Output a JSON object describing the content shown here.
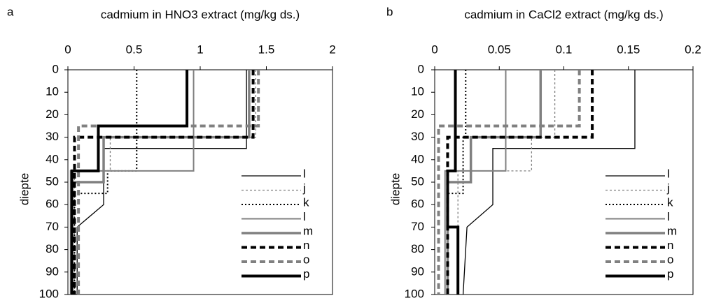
{
  "charts": [
    {
      "type": "line",
      "label": "a",
      "title": "cadmium in HNO3 extract (mg/kg ds.)",
      "y_label": "diepte",
      "xlim": [
        0,
        2
      ],
      "xticks": [
        0,
        0.5,
        1,
        1.5,
        2
      ],
      "ylim": [
        0,
        100
      ],
      "yticks": [
        0,
        10,
        20,
        30,
        40,
        50,
        60,
        70,
        80,
        90,
        100
      ],
      "y_inverted": true,
      "legend": "lower right",
      "series": [
        {
          "name": "l",
          "color": "#000000",
          "x": [
            1.35,
            1.35,
            0.27,
            0.27,
            0.07,
            0.07
          ],
          "y": [
            0,
            35,
            35,
            60,
            70,
            100
          ]
        },
        {
          "name": "j",
          "color": "#808080",
          "x": [
            1.42,
            1.42,
            0.32,
            0.32,
            0.05,
            0.05
          ],
          "y": [
            0,
            30,
            30,
            45,
            45,
            100
          ]
        },
        {
          "name": "k",
          "color": "#000000",
          "x": [
            0.52,
            0.52,
            0.3,
            0.3,
            0.05,
            0.05
          ],
          "y": [
            0,
            45,
            45,
            55,
            55,
            100
          ]
        },
        {
          "name": "l",
          "color": "#808080",
          "x": [
            0.95,
            0.95,
            0.02,
            0.02
          ],
          "y": [
            0,
            45,
            45,
            100
          ]
        },
        {
          "name": "m",
          "color": "#808080",
          "x": [
            1.37,
            1.37,
            0.27,
            0.27,
            0.03,
            0.03
          ],
          "y": [
            0,
            30,
            30,
            50,
            50,
            100
          ]
        },
        {
          "name": "n",
          "color": "#000000",
          "x": [
            1.4,
            1.4,
            0.05,
            0.05
          ],
          "y": [
            0,
            30,
            30,
            100
          ]
        },
        {
          "name": "o",
          "color": "#808080",
          "x": [
            1.44,
            1.44,
            0.08,
            0.08
          ],
          "y": [
            0,
            25,
            25,
            100
          ]
        },
        {
          "name": "p",
          "color": "#000000",
          "x": [
            0.9,
            0.9,
            0.23,
            0.23,
            0.03,
            0.03
          ],
          "y": [
            0,
            25,
            25,
            45,
            45,
            100
          ]
        }
      ]
    },
    {
      "type": "line",
      "label": "b",
      "title": "cadmium in CaCl2 extract (mg/kg ds.)",
      "y_label": "diepte",
      "xlim": [
        0,
        0.2
      ],
      "xticks": [
        0,
        0.05,
        0.1,
        0.15,
        0.2
      ],
      "ylim": [
        0,
        100
      ],
      "yticks": [
        0,
        10,
        20,
        30,
        40,
        50,
        60,
        70,
        80,
        90,
        100
      ],
      "y_inverted": true,
      "legend": "lower right",
      "series": [
        {
          "name": "l",
          "color": "#000000",
          "x": [
            0.155,
            0.155,
            0.045,
            0.045,
            0.025,
            0.022
          ],
          "y": [
            0,
            35,
            35,
            60,
            70,
            100
          ]
        },
        {
          "name": "j",
          "color": "#808080",
          "x": [
            0.093,
            0.093,
            0.075,
            0.075,
            0.018,
            0.018
          ],
          "y": [
            0,
            30,
            30,
            45,
            45,
            100
          ]
        },
        {
          "name": "k",
          "color": "#000000",
          "x": [
            0.024,
            0.024,
            0.022,
            0.022,
            0.01,
            0.01
          ],
          "y": [
            0,
            30,
            30,
            55,
            55,
            100
          ]
        },
        {
          "name": "l",
          "color": "#808080",
          "x": [
            0.055,
            0.055,
            0.008,
            0.008
          ],
          "y": [
            0,
            45,
            45,
            100
          ]
        },
        {
          "name": "m",
          "color": "#808080",
          "x": [
            0.082,
            0.082,
            0.028,
            0.028,
            0.01,
            0.01
          ],
          "y": [
            0,
            30,
            30,
            50,
            50,
            100
          ]
        },
        {
          "name": "n",
          "color": "#000000",
          "x": [
            0.122,
            0.122,
            0.01,
            0.01
          ],
          "y": [
            0,
            30,
            30,
            100
          ]
        },
        {
          "name": "o",
          "color": "#808080",
          "x": [
            0.112,
            0.112,
            0.003,
            0.003
          ],
          "y": [
            0,
            25,
            25,
            100
          ]
        },
        {
          "name": "p",
          "color": "#000000",
          "x": [
            0.016,
            0.016,
            0.01,
            0.01,
            0.018,
            0.018
          ],
          "y": [
            0,
            45,
            45,
            70,
            70,
            100
          ]
        }
      ]
    }
  ]
}
